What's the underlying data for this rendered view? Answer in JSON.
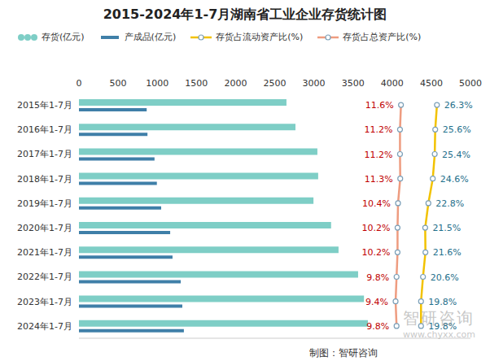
{
  "chart_data": {
    "type": "bar",
    "orientation": "horizontal",
    "title": "2015-2024年1-7月湖南省工业企业存货统计图",
    "source": "制图：智研咨询",
    "watermark": [
      "智研咨询",
      "www.chyxx.com"
    ],
    "legend": "top",
    "categories": [
      "2015年1-7月",
      "2016年1-7月",
      "2017年1-7月",
      "2018年1-7月",
      "2019年1-7月",
      "2020年1-7月",
      "2021年1-7月",
      "2022年1-7月",
      "2023年1-7月",
      "2024年1-7月"
    ],
    "xlim": [
      0,
      5000
    ],
    "xticks": [
      0,
      500,
      1000,
      1500,
      2000,
      2500,
      3000,
      3500,
      4000,
      4500,
      5000
    ],
    "y2lim": [
      -120,
      40
    ],
    "series": [
      {
        "name": "存货(亿元)",
        "type": "bar",
        "color": "#7ECEC6",
        "values": [
          2650,
          2765,
          3045,
          3055,
          2995,
          3220,
          3315,
          3565,
          3640,
          3690
        ]
      },
      {
        "name": "产成品(亿元)",
        "type": "bar",
        "color": "#3F7FA8",
        "values": [
          865,
          875,
          965,
          995,
          1050,
          1165,
          1195,
          1300,
          1320,
          1340
        ]
      },
      {
        "name": "存货占流动资产比(%)",
        "type": "line",
        "axis": "y2",
        "color": "#F2C200",
        "marker": "circle",
        "data_labels": true,
        "values": [
          26.3,
          25.6,
          25.4,
          24.6,
          22.8,
          21.5,
          21.6,
          20.6,
          19.8,
          19.8
        ],
        "value_labels": [
          "26.3%",
          "25.6%",
          "25.4%",
          "24.6%",
          "22.8%",
          "21.5%",
          "21.6%",
          "20.6%",
          "19.8%",
          "19.8%"
        ]
      },
      {
        "name": "存货占总资产比(%)",
        "type": "line",
        "axis": "y2",
        "color": "#EE9C80",
        "marker": "circle",
        "data_labels": true,
        "values": [
          11.6,
          11.2,
          11.2,
          11.3,
          10.4,
          10.2,
          10.2,
          9.8,
          9.4,
          9.8
        ],
        "value_labels": [
          "11.6%",
          "11.2%",
          "11.2%",
          "11.3%",
          "10.4%",
          "10.2%",
          "10.2%",
          "9.8%",
          "9.4%",
          "9.8%"
        ]
      }
    ]
  }
}
